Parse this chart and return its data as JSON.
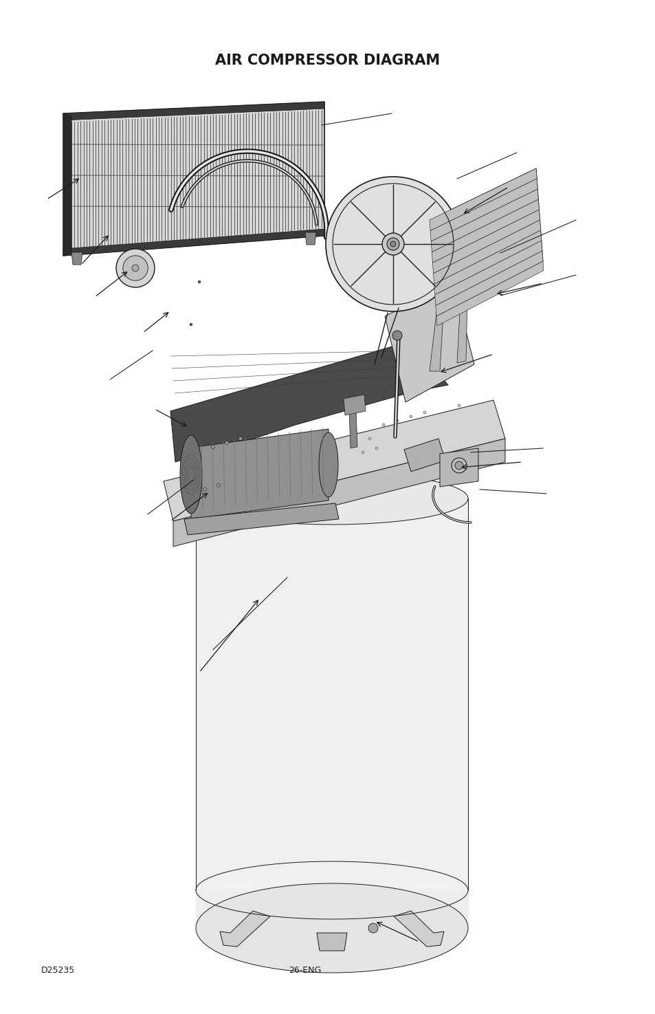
{
  "title": "AIR COMPRESSOR DIAGRAM",
  "title_fontsize": 15,
  "title_weight": "bold",
  "footer_left": "D25235",
  "footer_center": "26-ENG",
  "footer_fontsize": 9,
  "background_color": "#ffffff",
  "line_color": "#1a1a1a",
  "dark_fill": "#3a3a3a",
  "mid_fill": "#888888",
  "light_fill": "#cccccc",
  "very_light_fill": "#efefef",
  "cooler_fill": "#b8b8b8",
  "tank_fill": "#f2f2f2",
  "platform_top": "#d8d8d8",
  "platform_front": "#c0c0c0"
}
